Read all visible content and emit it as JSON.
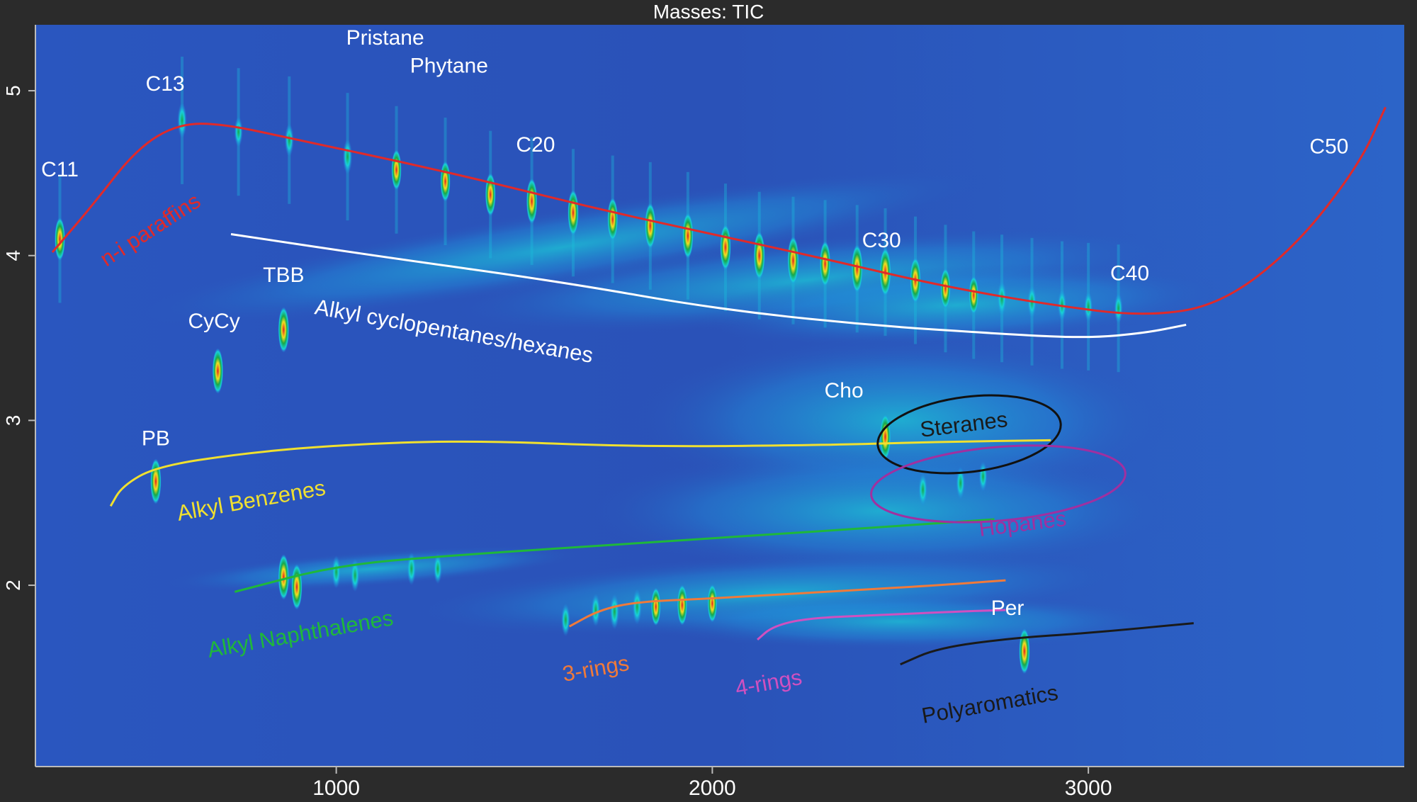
{
  "chart_data": {
    "type": "heatmap",
    "title": "Masses:  TIC",
    "xlabel": "",
    "ylabel": "",
    "xlim": [
      200,
      3840
    ],
    "ylim": [
      0.9,
      5.4
    ],
    "x_ticks": [
      "1000",
      "2000",
      "3000"
    ],
    "x_tick_values": [
      1000,
      2000,
      3000
    ],
    "y_ticks": [
      "2",
      "3",
      "4",
      "5"
    ],
    "y_tick_values": [
      2,
      3,
      4,
      5
    ],
    "grid": false,
    "legend": "none",
    "colors": {
      "background": "#2a52b8",
      "frame": "#2b2b2b",
      "low": "#1e88e5",
      "mid": "#18d0d8",
      "high": "#17a84a",
      "peak_core": "#e01e1e",
      "peak_ring": "#f0e020"
    },
    "annotations": [
      {
        "text": "Pristane",
        "x": 1130,
        "y": 5.28,
        "color": "#ffffff"
      },
      {
        "text": "Phytane",
        "x": 1300,
        "y": 5.11,
        "color": "#ffffff"
      },
      {
        "text": "C13",
        "x": 545,
        "y": 5.0,
        "color": "#ffffff"
      },
      {
        "text": "C11",
        "x": 265,
        "y": 4.48,
        "color": "#ffffff"
      },
      {
        "text": "C20",
        "x": 1530,
        "y": 4.63,
        "color": "#ffffff"
      },
      {
        "text": "C30",
        "x": 2450,
        "y": 4.05,
        "color": "#ffffff"
      },
      {
        "text": "C40",
        "x": 3110,
        "y": 3.85,
        "color": "#ffffff"
      },
      {
        "text": "C50",
        "x": 3640,
        "y": 4.62,
        "color": "#ffffff"
      },
      {
        "text": "TBB",
        "x": 860,
        "y": 3.84,
        "color": "#ffffff"
      },
      {
        "text": "CyCy",
        "x": 675,
        "y": 3.56,
        "color": "#ffffff"
      },
      {
        "text": "PB",
        "x": 520,
        "y": 2.85,
        "color": "#ffffff"
      },
      {
        "text": "Cho",
        "x": 2350,
        "y": 3.14,
        "color": "#ffffff"
      },
      {
        "text": "Per",
        "x": 2785,
        "y": 1.82,
        "color": "#ffffff"
      }
    ],
    "group_labels": [
      {
        "text": "n-i paraffins",
        "color": "#e02a2a"
      },
      {
        "text": "Alkyl cyclopentanes/hexanes",
        "color": "#ffffff"
      },
      {
        "text": "Alkyl Benzenes",
        "color": "#f0e030"
      },
      {
        "text": "Alkyl Naphthalenes",
        "color": "#1fb83a"
      },
      {
        "text": "3-rings",
        "color": "#f07a3a"
      },
      {
        "text": "4-rings",
        "color": "#d050c0"
      },
      {
        "text": "Polyaromatics",
        "color": "#1a1a1a"
      },
      {
        "text": "Steranes",
        "color": "#1a1a1a"
      },
      {
        "text": "Hopanes",
        "color": "#a030a0"
      }
    ],
    "trend_lines": [
      {
        "name_ref": "n-i paraffins",
        "color": "#e02a2a",
        "points": [
          [
            245,
            4.02
          ],
          [
            350,
            4.3
          ],
          [
            470,
            4.65
          ],
          [
            580,
            4.8
          ],
          [
            700,
            4.8
          ],
          [
            900,
            4.7
          ],
          [
            1150,
            4.58
          ],
          [
            1400,
            4.45
          ],
          [
            1700,
            4.28
          ],
          [
            2000,
            4.13
          ],
          [
            2300,
            3.98
          ],
          [
            2600,
            3.82
          ],
          [
            2900,
            3.7
          ],
          [
            3150,
            3.63
          ],
          [
            3350,
            3.7
          ],
          [
            3550,
            4.05
          ],
          [
            3720,
            4.55
          ],
          [
            3790,
            4.9
          ]
        ]
      },
      {
        "name_ref": "Alkyl cyclopentanes/hexanes",
        "color": "#ffffff",
        "points": [
          [
            720,
            4.13
          ],
          [
            1100,
            4.0
          ],
          [
            1600,
            3.84
          ],
          [
            2000,
            3.68
          ],
          [
            2400,
            3.58
          ],
          [
            2800,
            3.52
          ],
          [
            3000,
            3.5
          ],
          [
            3150,
            3.53
          ],
          [
            3260,
            3.58
          ]
        ]
      },
      {
        "name_ref": "Alkyl Benzenes",
        "color": "#f0e030",
        "points": [
          [
            400,
            2.48
          ],
          [
            430,
            2.6
          ],
          [
            520,
            2.72
          ],
          [
            750,
            2.8
          ],
          [
            1000,
            2.85
          ],
          [
            1350,
            2.88
          ],
          [
            1800,
            2.84
          ],
          [
            2300,
            2.85
          ],
          [
            2600,
            2.87
          ],
          [
            2900,
            2.88
          ]
        ]
      },
      {
        "name_ref": "Alkyl Naphthalenes",
        "color": "#1fb83a",
        "points": [
          [
            730,
            1.96
          ],
          [
            1000,
            2.12
          ],
          [
            1300,
            2.18
          ],
          [
            1700,
            2.24
          ],
          [
            2100,
            2.3
          ],
          [
            2500,
            2.36
          ],
          [
            2750,
            2.4
          ]
        ]
      },
      {
        "name_ref": "3-rings",
        "color": "#f07a3a",
        "points": [
          [
            1620,
            1.75
          ],
          [
            1700,
            1.85
          ],
          [
            1800,
            1.9
          ],
          [
            2000,
            1.92
          ],
          [
            2300,
            1.96
          ],
          [
            2600,
            2.0
          ],
          [
            2780,
            2.03
          ]
        ]
      },
      {
        "name_ref": "4-rings",
        "color": "#d050c0",
        "points": [
          [
            2120,
            1.67
          ],
          [
            2160,
            1.75
          ],
          [
            2250,
            1.8
          ],
          [
            2450,
            1.82
          ],
          [
            2650,
            1.84
          ],
          [
            2780,
            1.85
          ]
        ]
      },
      {
        "name_ref": "Polyaromatics",
        "color": "#1a1a1a",
        "points": [
          [
            2500,
            1.52
          ],
          [
            2600,
            1.62
          ],
          [
            2800,
            1.68
          ],
          [
            3000,
            1.71
          ],
          [
            3280,
            1.77
          ]
        ]
      }
    ],
    "peaks": [
      {
        "x": 265,
        "y": 4.1,
        "i": 0.8
      },
      {
        "x": 590,
        "y": 4.82,
        "i": 0.5
      },
      {
        "x": 740,
        "y": 4.75,
        "i": 0.3
      },
      {
        "x": 875,
        "y": 4.7,
        "i": 0.4
      },
      {
        "x": 1030,
        "y": 4.6,
        "i": 0.5
      },
      {
        "x": 1160,
        "y": 4.52,
        "i": 0.7
      },
      {
        "x": 1290,
        "y": 4.45,
        "i": 0.7
      },
      {
        "x": 1410,
        "y": 4.37,
        "i": 0.8
      },
      {
        "x": 1520,
        "y": 4.33,
        "i": 0.9
      },
      {
        "x": 1630,
        "y": 4.26,
        "i": 0.9
      },
      {
        "x": 1735,
        "y": 4.22,
        "i": 0.8
      },
      {
        "x": 1835,
        "y": 4.18,
        "i": 0.9
      },
      {
        "x": 1935,
        "y": 4.12,
        "i": 0.9
      },
      {
        "x": 2035,
        "y": 4.05,
        "i": 0.9
      },
      {
        "x": 2125,
        "y": 4.0,
        "i": 1.0
      },
      {
        "x": 2215,
        "y": 3.97,
        "i": 1.0
      },
      {
        "x": 2300,
        "y": 3.95,
        "i": 0.9
      },
      {
        "x": 2385,
        "y": 3.92,
        "i": 1.0
      },
      {
        "x": 2460,
        "y": 3.9,
        "i": 1.0
      },
      {
        "x": 2540,
        "y": 3.85,
        "i": 0.9
      },
      {
        "x": 2620,
        "y": 3.8,
        "i": 0.7
      },
      {
        "x": 2695,
        "y": 3.76,
        "i": 0.6
      },
      {
        "x": 2770,
        "y": 3.74,
        "i": 0.5
      },
      {
        "x": 2850,
        "y": 3.72,
        "i": 0.4
      },
      {
        "x": 2930,
        "y": 3.7,
        "i": 0.35
      },
      {
        "x": 3000,
        "y": 3.69,
        "i": 0.3
      },
      {
        "x": 3080,
        "y": 3.68,
        "i": 0.3
      },
      {
        "x": 860,
        "y": 3.55,
        "i": 0.9
      },
      {
        "x": 685,
        "y": 3.3,
        "i": 0.9
      },
      {
        "x": 520,
        "y": 2.63,
        "i": 0.9
      },
      {
        "x": 2460,
        "y": 2.9,
        "i": 0.9
      },
      {
        "x": 2830,
        "y": 1.6,
        "i": 0.9
      },
      {
        "x": 860,
        "y": 2.05,
        "i": 0.9
      },
      {
        "x": 895,
        "y": 1.99,
        "i": 0.9
      },
      {
        "x": 1000,
        "y": 2.08,
        "i": 0.4
      },
      {
        "x": 1050,
        "y": 2.06,
        "i": 0.4
      },
      {
        "x": 1200,
        "y": 2.1,
        "i": 0.4
      },
      {
        "x": 1270,
        "y": 2.1,
        "i": 0.3
      },
      {
        "x": 1610,
        "y": 1.79,
        "i": 0.4
      },
      {
        "x": 1690,
        "y": 1.85,
        "i": 0.4
      },
      {
        "x": 1740,
        "y": 1.84,
        "i": 0.5
      },
      {
        "x": 1800,
        "y": 1.87,
        "i": 0.5
      },
      {
        "x": 1850,
        "y": 1.87,
        "i": 0.6
      },
      {
        "x": 1920,
        "y": 1.88,
        "i": 0.7
      },
      {
        "x": 2000,
        "y": 1.89,
        "i": 0.6
      },
      {
        "x": 2560,
        "y": 2.58,
        "i": 0.4
      },
      {
        "x": 2660,
        "y": 2.62,
        "i": 0.4
      },
      {
        "x": 2720,
        "y": 2.66,
        "i": 0.3
      }
    ]
  }
}
